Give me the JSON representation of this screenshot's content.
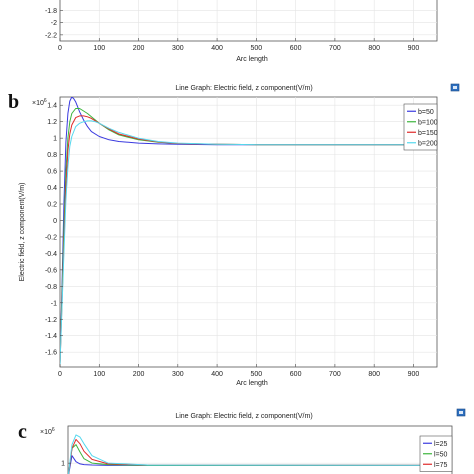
{
  "chart_data": [
    {
      "type": "line",
      "panel": "",
      "title": "",
      "xlabel": "Arc length",
      "ylabel": "",
      "xlim": [
        0,
        960
      ],
      "ylim": [
        -2.3,
        -1.6
      ],
      "xticks": [
        0,
        100,
        200,
        300,
        400,
        500,
        600,
        700,
        800,
        900
      ],
      "yticks": [
        -1.8,
        -2,
        -2.2
      ],
      "ytick_labels": [
        "-1.8",
        "-2",
        "-2.2"
      ],
      "grid": true,
      "series": []
    },
    {
      "type": "line",
      "panel": "b",
      "title": "Line Graph: Electric field, z component(V/m)",
      "xlabel": "Arc length",
      "ylabel": "Electric field, z component(V/m)",
      "exponent_label": "×10",
      "exponent_power": "6",
      "xlim": [
        0,
        960
      ],
      "ylim": [
        -1.78,
        1.5
      ],
      "xticks": [
        0,
        100,
        200,
        300,
        400,
        500,
        600,
        700,
        800,
        900
      ],
      "yticks": [
        1.4,
        1.2,
        1,
        0.8,
        0.6,
        0.4,
        0.2,
        0,
        -0.2,
        -0.4,
        -0.6,
        -0.8,
        -1,
        -1.2,
        -1.4,
        -1.6
      ],
      "ytick_labels": [
        "1.4",
        "1.2",
        "1",
        "0.8",
        "0.6",
        "0.4",
        "0.2",
        "0",
        "-0.2",
        "-0.4",
        "-0.6",
        "-0.8",
        "-1",
        "-1.2",
        "-1.4",
        "-1.6"
      ],
      "grid": true,
      "legend_position": "top-right",
      "series": [
        {
          "name": "b=50",
          "color": "#3a3adf",
          "x": [
            0,
            5,
            10,
            15,
            20,
            25,
            30,
            35,
            40,
            45,
            50,
            60,
            70,
            80,
            100,
            125,
            150,
            200,
            250,
            300,
            400,
            500,
            700,
            960
          ],
          "y": [
            -1.75,
            -0.8,
            0.2,
            0.95,
            1.3,
            1.45,
            1.5,
            1.48,
            1.44,
            1.38,
            1.32,
            1.22,
            1.14,
            1.08,
            1.02,
            0.98,
            0.96,
            0.94,
            0.93,
            0.925,
            0.92,
            0.92,
            0.92,
            0.92
          ]
        },
        {
          "name": "b=100",
          "color": "#3db53d",
          "x": [
            0,
            5,
            10,
            15,
            20,
            25,
            30,
            40,
            50,
            60,
            70,
            80,
            100,
            125,
            150,
            200,
            250,
            300,
            400,
            500,
            700,
            960
          ],
          "y": [
            -1.75,
            -0.9,
            -0.1,
            0.6,
            1.0,
            1.2,
            1.3,
            1.36,
            1.36,
            1.33,
            1.3,
            1.26,
            1.18,
            1.1,
            1.04,
            0.98,
            0.95,
            0.935,
            0.925,
            0.92,
            0.92,
            0.92
          ]
        },
        {
          "name": "b=150",
          "color": "#e02a2a",
          "x": [
            0,
            5,
            10,
            15,
            20,
            25,
            30,
            40,
            50,
            60,
            70,
            80,
            100,
            125,
            150,
            200,
            250,
            300,
            400,
            500,
            700,
            960
          ],
          "y": [
            -1.75,
            -1.0,
            -0.3,
            0.4,
            0.85,
            1.05,
            1.16,
            1.25,
            1.27,
            1.27,
            1.26,
            1.24,
            1.18,
            1.11,
            1.05,
            0.99,
            0.955,
            0.935,
            0.925,
            0.92,
            0.92,
            0.92
          ]
        },
        {
          "name": "b=200",
          "color": "#55d8ee",
          "x": [
            0,
            5,
            10,
            15,
            20,
            25,
            30,
            40,
            50,
            60,
            70,
            80,
            90,
            100,
            125,
            150,
            200,
            250,
            300,
            400,
            500,
            700,
            960
          ],
          "y": [
            -1.75,
            -1.05,
            -0.4,
            0.25,
            0.65,
            0.9,
            1.02,
            1.14,
            1.18,
            1.2,
            1.21,
            1.21,
            1.2,
            1.18,
            1.12,
            1.07,
            1.0,
            0.96,
            0.94,
            0.925,
            0.92,
            0.92,
            0.92
          ]
        }
      ]
    },
    {
      "type": "line",
      "panel": "c",
      "title": "Line Graph: Electric field, z component(V/m)",
      "xlabel": "",
      "ylabel": "",
      "exponent_label": "×10",
      "exponent_power": "6",
      "xlim": [
        0,
        960
      ],
      "ylim": [
        0.8,
        1.5
      ],
      "yticks": [
        1
      ],
      "ytick_labels": [
        "1"
      ],
      "grid": true,
      "legend_position": "top-right",
      "series": [
        {
          "name": "l=25",
          "color": "#3a3adf",
          "x": [
            0,
            10,
            20,
            30,
            40,
            60,
            100,
            200,
            960
          ],
          "y": [
            0.8,
            1.1,
            1.02,
            0.99,
            0.98,
            0.975,
            0.97,
            0.97,
            0.97
          ]
        },
        {
          "name": "l=50",
          "color": "#3db53d",
          "x": [
            0,
            10,
            20,
            30,
            40,
            60,
            100,
            200,
            960
          ],
          "y": [
            0.8,
            1.2,
            1.25,
            1.15,
            1.06,
            1.0,
            0.98,
            0.97,
            0.97
          ]
        },
        {
          "name": "l=75",
          "color": "#e02a2a",
          "x": [
            0,
            10,
            20,
            30,
            40,
            60,
            100,
            200,
            960
          ],
          "y": [
            0.8,
            1.2,
            1.32,
            1.26,
            1.16,
            1.05,
            0.99,
            0.975,
            0.97
          ]
        },
        {
          "name": "",
          "color": "#55d8ee",
          "x": [
            0,
            10,
            20,
            30,
            40,
            60,
            100,
            200,
            960
          ],
          "y": [
            0.8,
            1.25,
            1.38,
            1.35,
            1.26,
            1.1,
            1.0,
            0.975,
            0.97
          ]
        }
      ]
    }
  ]
}
